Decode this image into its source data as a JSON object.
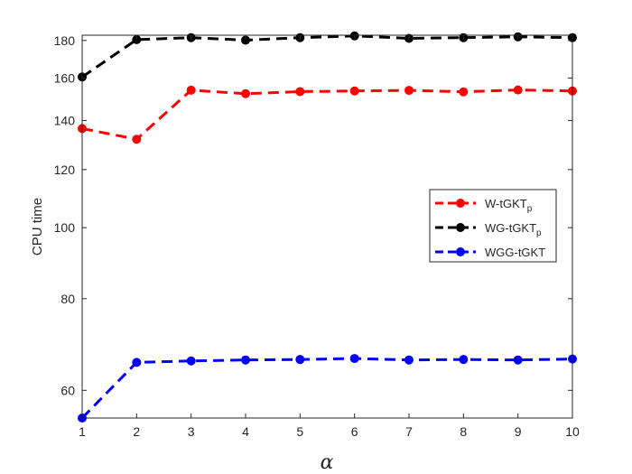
{
  "chart_data": {
    "type": "line",
    "xlabel": "α",
    "ylabel": "CPU time",
    "x": [
      1,
      2,
      3,
      4,
      5,
      6,
      7,
      8,
      9,
      10
    ],
    "xticks": [
      "1",
      "2",
      "3",
      "4",
      "5",
      "6",
      "7",
      "8",
      "9",
      "10"
    ],
    "xlim": [
      1,
      10
    ],
    "ylim": [
      55,
      183
    ],
    "yscale": "log",
    "yticks": [
      "60",
      "80",
      "100",
      "120",
      "140",
      "160",
      "180"
    ],
    "legend_position": "right",
    "grid": false,
    "series": [
      {
        "name": "W-tGKT",
        "subscript": "p",
        "color": "#ff0000",
        "values": [
          136.5,
          132,
          154,
          152.3,
          153.3,
          153.6,
          153.9,
          153.2,
          154.1,
          153.6
        ]
      },
      {
        "name": "WG-tGKT",
        "subscript": "p",
        "color": "#000000",
        "values": [
          160.5,
          180.5,
          181.6,
          180.2,
          181.6,
          182.6,
          181.2,
          181.6,
          182.1,
          181.6
        ]
      },
      {
        "name": "WGG-tGKT",
        "subscript": "",
        "color": "#0000ff",
        "values": [
          55,
          65.5,
          65.8,
          66,
          66.1,
          66.3,
          66,
          66.1,
          66,
          66.2
        ]
      }
    ]
  }
}
